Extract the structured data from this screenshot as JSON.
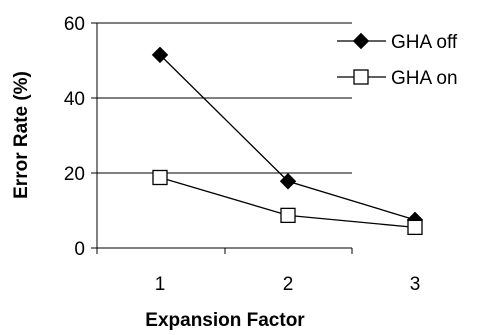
{
  "chart_data": {
    "type": "line",
    "xlabel": "Expansion Factor",
    "ylabel": "Error Rate (%)",
    "x": [
      1,
      2,
      3
    ],
    "ylim": [
      0,
      60
    ],
    "yticks": [
      0,
      20,
      40,
      60
    ],
    "grid": true,
    "legend_position": "top-right",
    "series": [
      {
        "name": "GHA off",
        "marker": "filled-diamond",
        "values": [
          51.5,
          17.8,
          7.5
        ]
      },
      {
        "name": "GHA on",
        "marker": "open-square",
        "values": [
          18.8,
          8.7,
          5.5
        ]
      }
    ]
  },
  "colors": {
    "line": "#000000",
    "grid": "#000000",
    "open_marker_fill": "#ffffff"
  }
}
